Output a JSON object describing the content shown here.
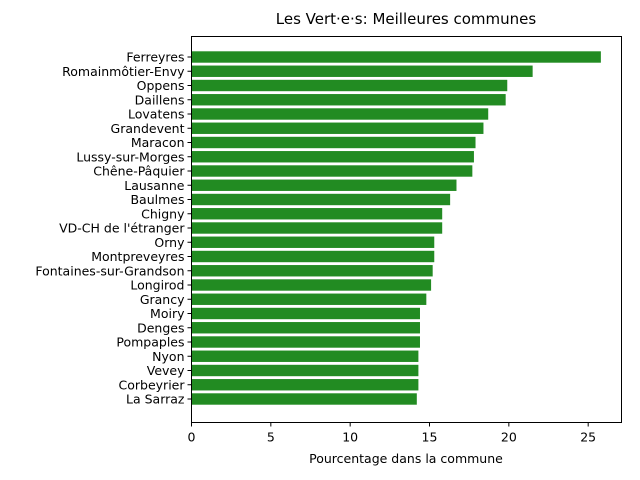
{
  "chart_data": {
    "type": "bar",
    "orientation": "horizontal",
    "title": "Les Vert·e·s: Meilleures communes",
    "xlabel": "Pourcentage dans la commune",
    "ylabel": "",
    "xlim": [
      0,
      27.1
    ],
    "xticks": [
      0,
      5,
      10,
      15,
      20,
      25
    ],
    "grid": false,
    "bar_color": "#228b22",
    "categories": [
      "Ferreyres",
      "Romainmôtier-Envy",
      "Oppens",
      "Daillens",
      "Lovatens",
      "Grandevent",
      "Maracon",
      "Lussy-sur-Morges",
      "Chêne-Pâquier",
      "Lausanne",
      "Baulmes",
      "Chigny",
      "VD-CH de l'étranger",
      "Orny",
      "Montpreveyres",
      "Fontaines-sur-Grandson",
      "Longirod",
      "Grancy",
      "Moiry",
      "Denges",
      "Pompaples",
      "Nyon",
      "Vevey",
      "Corbeyrier",
      "La Sarraz"
    ],
    "values": [
      25.8,
      21.5,
      19.9,
      19.8,
      18.7,
      18.4,
      17.9,
      17.8,
      17.7,
      16.7,
      16.3,
      15.8,
      15.8,
      15.3,
      15.3,
      15.2,
      15.1,
      14.8,
      14.4,
      14.4,
      14.4,
      14.3,
      14.3,
      14.3,
      14.2
    ]
  }
}
